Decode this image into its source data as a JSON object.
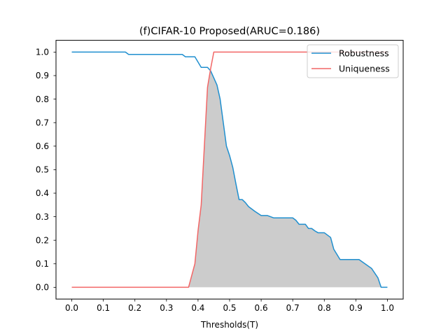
{
  "chart_data": {
    "type": "line",
    "title": "(f)CIFAR-10 Proposed(ARUC=0.186)",
    "xlabel": "Thresholds(T)",
    "ylabel": "",
    "xlim": [
      -0.05,
      1.05
    ],
    "ylim": [
      -0.05,
      1.05
    ],
    "xticks": [
      0.0,
      0.1,
      0.2,
      0.3,
      0.4,
      0.5,
      0.6,
      0.7,
      0.8,
      0.9,
      1.0
    ],
    "xtick_labels": [
      "0.0",
      "0.1",
      "0.2",
      "0.3",
      "0.4",
      "0.5",
      "0.6",
      "0.7",
      "0.8",
      "0.9",
      "1.0"
    ],
    "yticks": [
      0.0,
      0.1,
      0.2,
      0.3,
      0.4,
      0.5,
      0.6,
      0.7,
      0.8,
      0.9,
      1.0
    ],
    "ytick_labels": [
      "0.0",
      "0.1",
      "0.2",
      "0.3",
      "0.4",
      "0.5",
      "0.6",
      "0.7",
      "0.8",
      "0.9",
      "1.0"
    ],
    "grid": false,
    "legend_position": "top-right",
    "fill_between": {
      "series": [
        "Robustness",
        "Uniqueness"
      ],
      "color": "#cccccc",
      "mode": "min"
    },
    "series": [
      {
        "name": "Robustness",
        "color": "#1f8fcf",
        "x": [
          0.0,
          0.1,
          0.17,
          0.18,
          0.25,
          0.35,
          0.36,
          0.39,
          0.41,
          0.43,
          0.44,
          0.45,
          0.46,
          0.47,
          0.48,
          0.49,
          0.5,
          0.51,
          0.52,
          0.53,
          0.54,
          0.55,
          0.56,
          0.57,
          0.58,
          0.6,
          0.62,
          0.64,
          0.7,
          0.71,
          0.72,
          0.73,
          0.74,
          0.75,
          0.76,
          0.77,
          0.78,
          0.79,
          0.8,
          0.82,
          0.83,
          0.85,
          0.9,
          0.91,
          0.95,
          0.97,
          0.98,
          1.0
        ],
        "y": [
          1.0,
          1.0,
          1.0,
          0.99,
          0.99,
          0.99,
          0.98,
          0.98,
          0.935,
          0.935,
          0.92,
          0.89,
          0.86,
          0.8,
          0.7,
          0.6,
          0.56,
          0.51,
          0.44,
          0.373,
          0.373,
          0.36,
          0.343,
          0.333,
          0.323,
          0.305,
          0.305,
          0.295,
          0.295,
          0.285,
          0.268,
          0.268,
          0.268,
          0.25,
          0.25,
          0.24,
          0.232,
          0.232,
          0.232,
          0.212,
          0.162,
          0.118,
          0.118,
          0.118,
          0.08,
          0.04,
          0.0,
          0.0
        ]
      },
      {
        "name": "Uniqueness",
        "color": "#f26666",
        "x": [
          0.0,
          0.37,
          0.39,
          0.4,
          0.41,
          0.42,
          0.43,
          0.44,
          0.45,
          0.47,
          1.0
        ],
        "y": [
          0.0,
          0.0,
          0.1,
          0.24,
          0.35,
          0.6,
          0.85,
          0.93,
          1.0,
          1.0,
          1.0
        ]
      }
    ]
  }
}
